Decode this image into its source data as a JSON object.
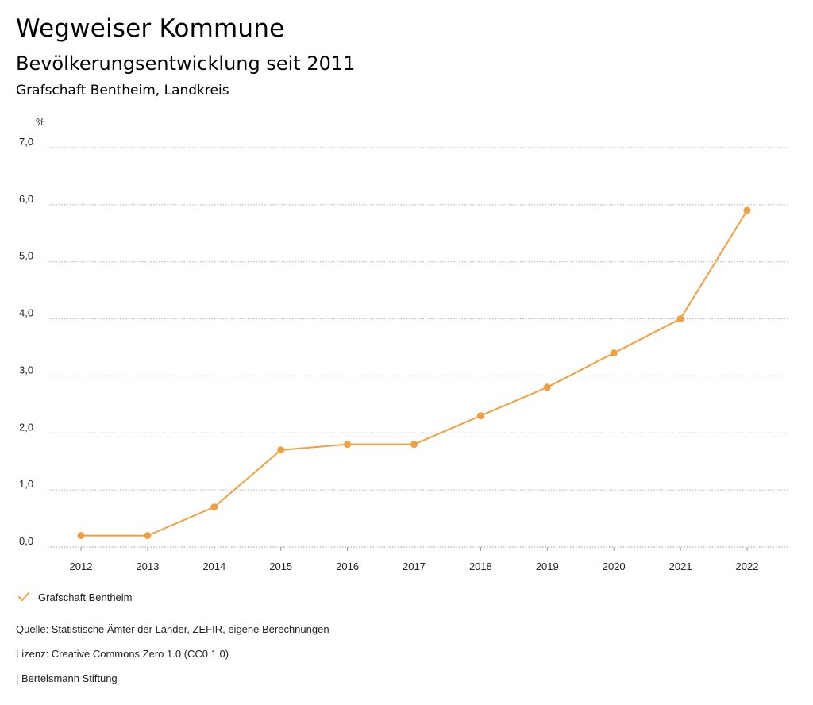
{
  "header": {
    "title": "Wegweiser Kommune",
    "subtitle": "Bevölkerungsentwicklung seit 2011",
    "region": "Grafschaft Bentheim, Landkreis"
  },
  "chart_data": {
    "type": "line",
    "title": "Bevölkerungsentwicklung seit 2011",
    "ylabel": "%",
    "xlabel": "",
    "categories": [
      "2012",
      "2013",
      "2014",
      "2015",
      "2016",
      "2017",
      "2018",
      "2019",
      "2020",
      "2021",
      "2022"
    ],
    "series": [
      {
        "name": "Grafschaft Bentheim",
        "values": [
          0.2,
          0.2,
          0.7,
          1.7,
          1.8,
          1.8,
          2.3,
          2.8,
          3.4,
          4.0,
          5.9
        ],
        "color": "#f0a040"
      }
    ],
    "ylim": [
      0,
      7
    ],
    "yticks": [
      "0,0",
      "1,0",
      "2,0",
      "3,0",
      "4,0",
      "5,0",
      "6,0",
      "7,0"
    ],
    "grid": true,
    "legend": "bottom-left"
  },
  "legend": {
    "label": "Grafschaft Bentheim"
  },
  "footer": {
    "source": "Quelle: Statistische Ämter der Länder, ZEFIR, eigene Berechnungen",
    "license": "Lizenz: Creative Commons Zero 1.0 (CC0 1.0)",
    "publisher": "| Bertelsmann Stiftung"
  }
}
